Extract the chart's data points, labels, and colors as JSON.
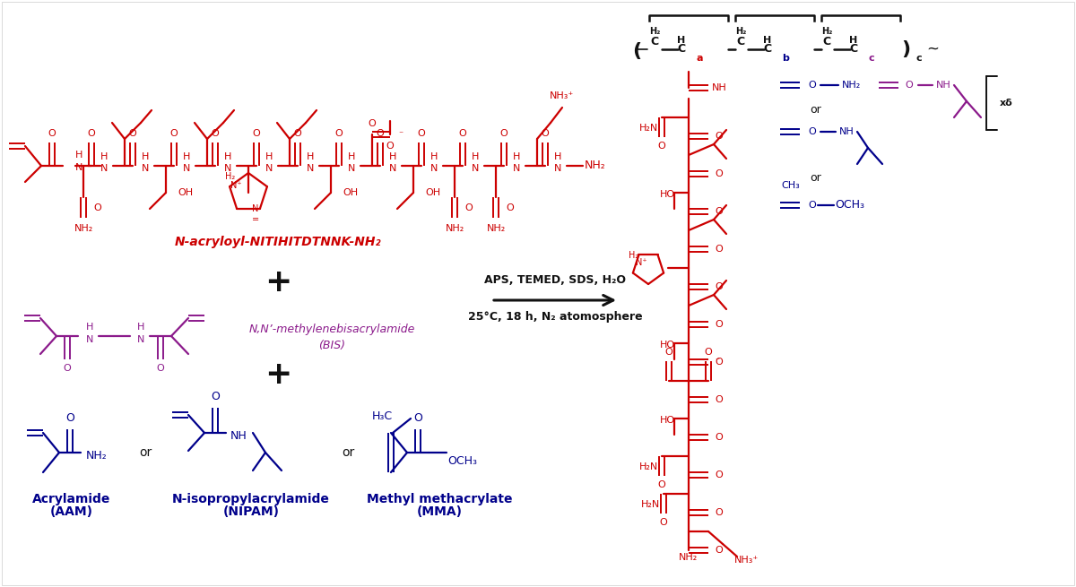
{
  "background": "#ffffff",
  "red": "#cc0000",
  "blue": "#00008b",
  "purple": "#8b1a8b",
  "black": "#111111",
  "peptide_label": "N-acryloyl-NITIHITDTNNK-NH₂",
  "bis_name_1": "N,N’-methylenebisacrylamide",
  "bis_name_2": "(BIS)",
  "rxn_line1": "APS, TEMED, SDS, H₂O",
  "rxn_line2": "25°C, 18 h, N₂ atomosphere",
  "aam_1": "Acrylamide",
  "aam_2": "(AAM)",
  "nipam_1": "N-isopropylacrylamide",
  "nipam_2": "(NIPAM)",
  "mma_1": "Methyl methacrylate",
  "mma_2": "(MMA)"
}
